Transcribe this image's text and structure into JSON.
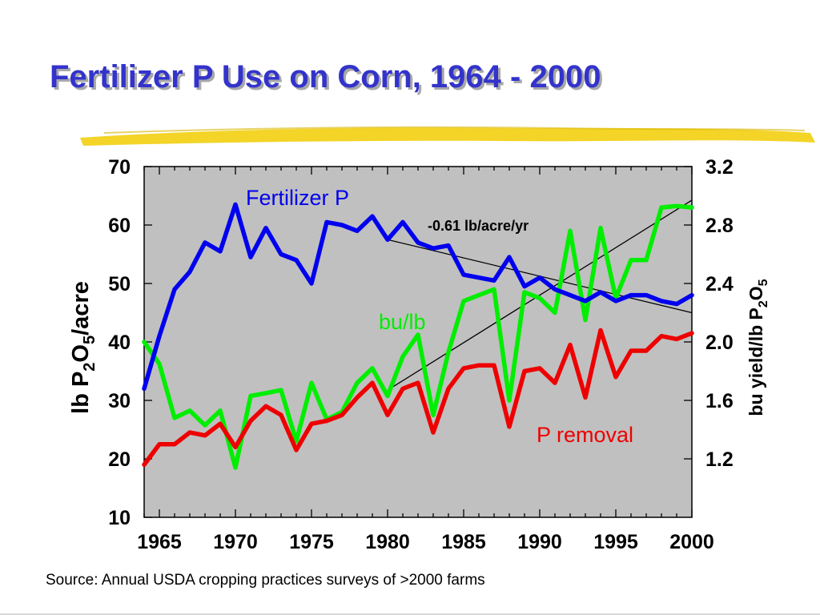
{
  "slide": {
    "title": "Fertilizer P Use on Corn, 1964 - 2000",
    "source": "Source: Annual USDA cropping practices surveys of >2000 farms"
  },
  "colors": {
    "title": "#3333cc",
    "highlight": "#f2d21b",
    "plot_background": "#c0c0c0",
    "fertilizer_p": "#0000ee",
    "bu_per_lb": "#00ee00",
    "p_removal": "#ee0000",
    "trend": "#000000"
  },
  "chart_data": {
    "type": "line",
    "x": [
      1964,
      1965,
      1966,
      1967,
      1968,
      1969,
      1970,
      1971,
      1972,
      1973,
      1974,
      1975,
      1976,
      1977,
      1978,
      1979,
      1980,
      1981,
      1982,
      1983,
      1984,
      1985,
      1986,
      1987,
      1988,
      1989,
      1990,
      1991,
      1992,
      1993,
      1994,
      1995,
      1996,
      1997,
      1998,
      1999,
      2000
    ],
    "xlim": [
      1964,
      2000
    ],
    "xticks": [
      "1965",
      "1970",
      "1975",
      "1980",
      "1985",
      "1990",
      "1995",
      "2000"
    ],
    "xtick_values": [
      1965,
      1970,
      1975,
      1980,
      1985,
      1990,
      1995,
      2000
    ],
    "y_left": {
      "label_parts": [
        "lb P",
        "2",
        "O",
        "5",
        "/acre"
      ],
      "lim": [
        10,
        70
      ],
      "ticks": [
        "10",
        "20",
        "30",
        "40",
        "50",
        "60",
        "70"
      ],
      "tick_values": [
        10,
        20,
        30,
        40,
        50,
        60,
        70
      ]
    },
    "y_right": {
      "label_parts": [
        "bu yield/lb P",
        "2",
        "O",
        "5"
      ],
      "lim": [
        0.8,
        3.2
      ],
      "ticks": [
        "1.2",
        "1.6",
        "2.0",
        "2.4",
        "2.8",
        "3.2"
      ],
      "tick_values": [
        1.2,
        1.6,
        2.0,
        2.4,
        2.8,
        3.2
      ]
    },
    "series": [
      {
        "name": "Fertilizer P",
        "axis": "left",
        "color_key": "fertilizer_p",
        "values": [
          32,
          41,
          49,
          52,
          57,
          55.5,
          63.5,
          54.5,
          59.5,
          55,
          54,
          50,
          60.5,
          60,
          59,
          61.5,
          57.5,
          60.5,
          57,
          56,
          56.5,
          51.5,
          51,
          50.5,
          54.5,
          49.5,
          51,
          49,
          48,
          47,
          48.5,
          47,
          48,
          48,
          47,
          46.5,
          48
        ]
      },
      {
        "name": "bu/lb",
        "axis": "right",
        "color_key": "bu_per_lb",
        "values": [
          2.0,
          1.85,
          1.48,
          1.53,
          1.43,
          1.53,
          1.14,
          1.63,
          1.65,
          1.67,
          1.32,
          1.72,
          1.47,
          1.52,
          1.72,
          1.82,
          1.63,
          1.9,
          2.05,
          1.5,
          1.93,
          2.28,
          2.32,
          2.36,
          1.6,
          2.34,
          2.3,
          2.2,
          2.76,
          2.15,
          2.78,
          2.3,
          2.56,
          2.56,
          2.92,
          2.93,
          2.92
        ]
      },
      {
        "name": "P removal",
        "axis": "left",
        "color_key": "p_removal",
        "values": [
          19,
          22.5,
          22.5,
          24.5,
          24,
          26,
          22,
          26.5,
          29,
          27.5,
          21.5,
          26,
          26.5,
          27.5,
          30.5,
          33,
          27.5,
          32,
          33,
          24.5,
          32,
          35.5,
          36,
          36,
          25.5,
          35,
          35.5,
          33,
          39.5,
          30.5,
          42,
          34,
          38.5,
          38.5,
          41,
          40.5,
          41.5
        ]
      }
    ],
    "trends": [
      {
        "axis": "left",
        "from": [
          1980,
          57.5
        ],
        "to": [
          2000,
          45
        ]
      },
      {
        "axis": "right",
        "from": [
          1980,
          1.67
        ],
        "to": [
          2000,
          2.97
        ]
      }
    ],
    "annotations": {
      "fertilizer_p_label": "Fertilizer P",
      "bu_lb_label": "bu/lb",
      "p_removal_label": "P removal",
      "trend_label": "-0.61 lb/acre/yr"
    },
    "grid": false
  }
}
